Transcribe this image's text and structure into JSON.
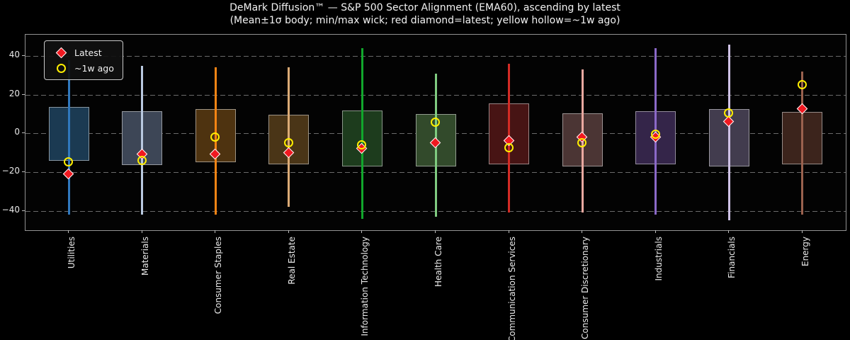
{
  "chart_data": {
    "type": "candlestick",
    "title": "DeMark Diffusion™ — S&P 500 Sector Alignment (EMA60), ascending by latest",
    "subtitle": "(Mean±1σ body; min/max wick; red diamond=latest; yellow hollow=~1w ago)",
    "xlabel": "",
    "ylabel": "",
    "ylim": [
      -50,
      51
    ],
    "grid": "horizontal-dashed",
    "legend_position": "upper-left",
    "legend": [
      {
        "label": "Latest",
        "marker": "diamond",
        "color": "#f01820"
      },
      {
        "label": "~1w ago",
        "marker": "hollow-circle",
        "color": "#ffee00"
      }
    ],
    "yticks": [
      {
        "value": 40,
        "label": "40"
      },
      {
        "value": 20,
        "label": "20"
      },
      {
        "value": 0,
        "label": "0"
      },
      {
        "value": -20,
        "label": "−20"
      },
      {
        "value": -40,
        "label": "−40"
      }
    ],
    "sectors": [
      {
        "label": "Utilities",
        "min": -42,
        "max": 38,
        "body_low": -14,
        "body_high": 13.5,
        "latest": -21,
        "week_ago": -15,
        "wick_color": "#3078bd",
        "body_fill": "#1b3a52"
      },
      {
        "label": "Materials",
        "min": -42,
        "max": 35,
        "body_low": -16.5,
        "body_high": 11.5,
        "latest": -11,
        "week_ago": -14,
        "wick_color": "#b9c9e0",
        "body_fill": "#3d4656"
      },
      {
        "label": "Consumer Staples",
        "min": -42,
        "max": 34,
        "body_low": -15,
        "body_high": 12.5,
        "latest": -11,
        "week_ago": -2,
        "wick_color": "#f58414",
        "body_fill": "#4e3310"
      },
      {
        "label": "Real Estate",
        "min": -38,
        "max": 34,
        "body_low": -16,
        "body_high": 9.5,
        "latest": -10,
        "week_ago": -5,
        "wick_color": "#dcab76",
        "body_fill": "#4a3517"
      },
      {
        "label": "Information Technology",
        "min": -44,
        "max": 44,
        "body_low": -17,
        "body_high": 12,
        "latest": -8,
        "week_ago": -6,
        "wick_color": "#11a62c",
        "body_fill": "#1d3c1d"
      },
      {
        "label": "Health Care",
        "min": -43,
        "max": 31,
        "body_low": -17,
        "body_high": 10,
        "latest": -5,
        "week_ago": 5.5,
        "wick_color": "#7fcb80",
        "body_fill": "#324a2b"
      },
      {
        "label": "Communication Services",
        "min": -41,
        "max": 36,
        "body_low": -16,
        "body_high": 15.5,
        "latest": -4,
        "week_ago": -7.5,
        "wick_color": "#d32b25",
        "body_fill": "#471414"
      },
      {
        "label": "Consumer Discretionary",
        "min": -41,
        "max": 33,
        "body_low": -17,
        "body_high": 10.5,
        "latest": -2,
        "week_ago": -5,
        "wick_color": "#e9a8a0",
        "body_fill": "#4b3534"
      },
      {
        "label": "Industrials",
        "min": -42,
        "max": 44,
        "body_low": -16,
        "body_high": 11.5,
        "latest": -2,
        "week_ago": -0.5,
        "wick_color": "#8b69c8",
        "body_fill": "#342549"
      },
      {
        "label": "Financials",
        "min": -45,
        "max": 46,
        "body_low": -17,
        "body_high": 12.5,
        "latest": 6,
        "week_ago": 10.5,
        "wick_color": "#cfc2e6",
        "body_fill": "#423c4e"
      },
      {
        "label": "Energy",
        "min": -42,
        "max": 32,
        "body_low": -16,
        "body_high": 11,
        "latest": 12.5,
        "week_ago": 25,
        "wick_color": "#9a614e",
        "body_fill": "#3c241c"
      }
    ]
  }
}
